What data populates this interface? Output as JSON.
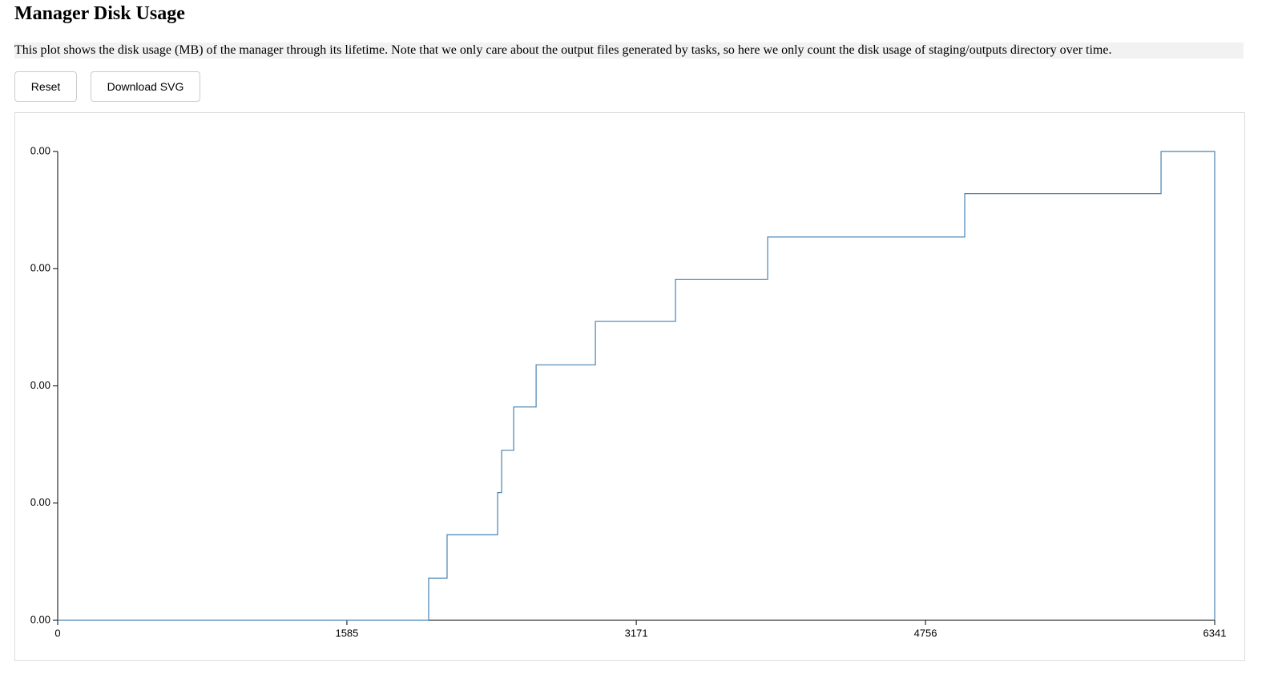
{
  "header": {
    "title": "Manager Disk Usage"
  },
  "description": "This plot shows the disk usage (MB) of the manager through its lifetime. Note that we only care about the output files generated by tasks, so here we only count the disk usage of staging/outputs directory over time.",
  "buttons": [
    "Reset",
    "Download SVG"
  ],
  "chart_data": {
    "type": "step",
    "x": [
      0,
      2033,
      2134,
      2411,
      2433,
      2499,
      2622,
      2947,
      3386,
      3891,
      4971,
      6047,
      6341
    ],
    "series": [
      {
        "name": "disk usage",
        "color": "#4682b4",
        "values": [
          0,
          0.00036,
          0.00073,
          0.00109,
          0.00145,
          0.00182,
          0.00218,
          0.00255,
          0.00291,
          0.00327,
          0.00364,
          0.004,
          0
        ]
      }
    ],
    "xlim": [
      0,
      6341
    ],
    "xticks": [
      0,
      1585,
      3171,
      4756,
      6341
    ],
    "ylim": [
      0,
      0.004
    ],
    "yticks": [
      {
        "value": 0,
        "label": "0.00"
      },
      {
        "value": 0.001,
        "label": "0.00"
      },
      {
        "value": 0.002,
        "label": "0.00"
      },
      {
        "value": 0.003,
        "label": "0.00"
      },
      {
        "value": 0.004,
        "label": "0.00"
      }
    ]
  }
}
